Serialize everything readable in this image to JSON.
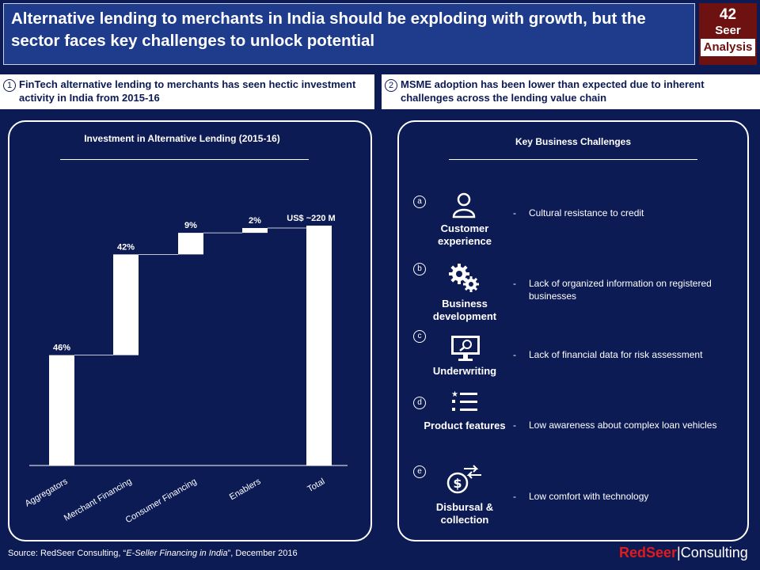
{
  "title": "Alternative lending to merchants in India should be exploding with growth, but the sector faces key challenges to unlock potential",
  "badge": {
    "number": "42",
    "line1": "Seer",
    "line2": "Analysis"
  },
  "section1": {
    "number": "1",
    "text": "FinTech alternative lending to merchants has seen hectic investment activity in India from 2015-16"
  },
  "section2": {
    "number": "2",
    "text": "MSME adoption has been lower than expected due to inherent challenges across the lending value chain"
  },
  "chart_data": {
    "type": "bar",
    "subtype": "waterfall",
    "title": "Investment in Alternative Lending (2015-16)",
    "categories": [
      "Aggregators",
      "Merchant Financing",
      "Consumer Financing",
      "Enablers",
      "Total"
    ],
    "values": [
      46,
      42,
      9,
      2,
      100
    ],
    "labels": [
      "46%",
      "42%",
      "9%",
      "2%",
      "US$ ~220 M"
    ],
    "ylim": [
      0,
      100
    ],
    "xlabel": "",
    "ylabel": "",
    "bar_color": "#ffffff"
  },
  "challenges": {
    "title": "Key Business  Challenges",
    "items": [
      {
        "letter": "a",
        "icon": "person-icon",
        "label": "Customer experience",
        "desc": "Cultural resistance to credit"
      },
      {
        "letter": "b",
        "icon": "gears-icon",
        "label": "Business development",
        "desc": "Lack of organized information on registered businesses"
      },
      {
        "letter": "c",
        "icon": "monitor-search-icon",
        "label": "Underwriting",
        "desc": "Lack of financial data for risk assessment"
      },
      {
        "letter": "d",
        "icon": "list-icon",
        "label": "Product features",
        "desc": "Low awareness about complex loan vehicles"
      },
      {
        "letter": "e",
        "icon": "dollar-transfer-icon",
        "label": "Disbursal & collection",
        "desc": "Low comfort with technology"
      }
    ]
  },
  "source": {
    "prefix": "Source: RedSeer Consulting, “",
    "title": "E-Seller Financing in India",
    "suffix": "”, December 2016"
  },
  "logo": {
    "red": "RedSeer",
    "sep": "|",
    "rest": "Consulting"
  }
}
